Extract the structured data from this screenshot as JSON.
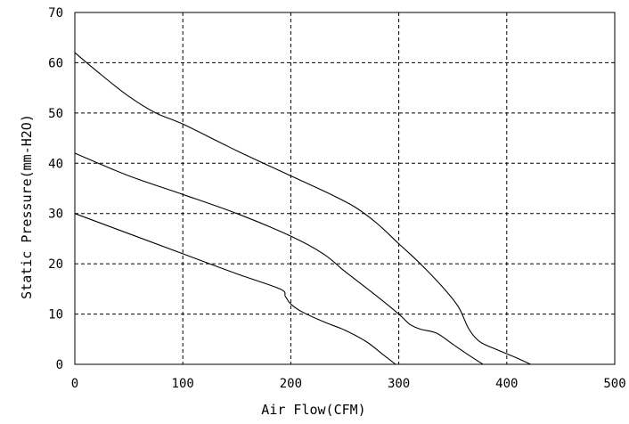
{
  "chart_data": {
    "type": "line",
    "title": "",
    "xlabel": "Air Flow(CFM)",
    "ylabel": "Static Pressure(mm-H2O)",
    "xlim": [
      0,
      500
    ],
    "ylim": [
      0,
      70
    ],
    "x_ticks": [
      "0",
      "100",
      "200",
      "300",
      "400",
      "500"
    ],
    "y_ticks": [
      "0",
      "10",
      "20",
      "30",
      "40",
      "50",
      "60",
      "70"
    ],
    "grid": true,
    "legend": "none",
    "series": [
      {
        "x": [
          0,
          25,
          50,
          75,
          100,
          150,
          200,
          240,
          260,
          280,
          300,
          320,
          340,
          355,
          365,
          375,
          390,
          410,
          422
        ],
        "y": [
          62,
          57.5,
          53.3,
          50,
          47.8,
          42.5,
          37.5,
          33.5,
          31.2,
          28,
          24,
          20,
          15.5,
          11.5,
          7,
          4.5,
          3,
          1.2,
          0
        ]
      },
      {
        "x": [
          0,
          50,
          100,
          150,
          200,
          230,
          250,
          280,
          300,
          310,
          320,
          335,
          350,
          365,
          378
        ],
        "y": [
          42,
          37.5,
          33.8,
          30,
          25.5,
          22,
          18.5,
          13.5,
          10,
          8,
          7,
          6.2,
          4,
          1.8,
          0
        ]
      },
      {
        "x": [
          0,
          50,
          100,
          150,
          190,
          195,
          200,
          210,
          230,
          250,
          270,
          285,
          297
        ],
        "y": [
          30,
          26,
          22,
          18,
          15,
          13.5,
          12,
          10.5,
          8.5,
          6.8,
          4.5,
          2,
          0
        ]
      }
    ]
  }
}
